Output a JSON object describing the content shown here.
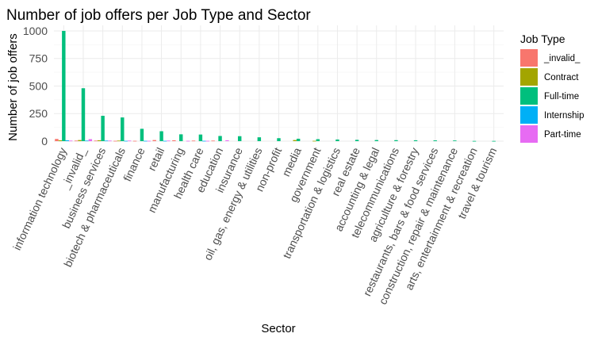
{
  "chart_data": {
    "type": "bar",
    "title": "Number of job offers per Job Type and Sector",
    "xlabel": "Sector",
    "ylabel": "Number of job offers",
    "ylim": [
      0,
      1050
    ],
    "yticks": [
      0,
      250,
      500,
      750,
      1000
    ],
    "grid": true,
    "legend_position": "right",
    "legend_title": "Job Type",
    "categories": [
      "information technology",
      "_invalid_",
      "business services",
      "biotech & pharmaceuticals",
      "finance",
      "retail",
      "manufacturing",
      "health care",
      "education",
      "insurance",
      "oil, gas, energy & utilities",
      "non-profit",
      "media",
      "government",
      "transportation & logistics",
      "real estate",
      "accounting & legal",
      "telecommunications",
      "agriculture & forestry",
      "restaurants, bars & food services",
      "construction, repair & maintenance",
      "arts, entertainment & recreation",
      "travel & tourism"
    ],
    "series": [
      {
        "name": "_invalid_",
        "color": "#F8766D",
        "values": [
          20,
          5,
          5,
          3,
          3,
          10,
          8,
          5,
          5,
          0,
          0,
          0,
          0,
          0,
          0,
          0,
          0,
          0,
          0,
          0,
          0,
          0,
          0
        ]
      },
      {
        "name": "Contract",
        "color": "#A3A500",
        "values": [
          8,
          10,
          8,
          5,
          0,
          0,
          0,
          0,
          0,
          0,
          0,
          0,
          10,
          3,
          0,
          0,
          0,
          0,
          0,
          0,
          0,
          0,
          0
        ]
      },
      {
        "name": "Full-time",
        "color": "#00BF7D",
        "values": [
          1000,
          480,
          230,
          215,
          112,
          90,
          62,
          60,
          47,
          45,
          35,
          27,
          22,
          18,
          15,
          12,
          10,
          9,
          8,
          7,
          6,
          2,
          2
        ]
      },
      {
        "name": "Internship",
        "color": "#00B0F6",
        "values": [
          8,
          5,
          5,
          3,
          3,
          3,
          0,
          3,
          0,
          0,
          0,
          0,
          0,
          0,
          0,
          0,
          0,
          0,
          0,
          0,
          0,
          0,
          0
        ]
      },
      {
        "name": "Part-time",
        "color": "#E76BF3",
        "values": [
          5,
          18,
          5,
          5,
          3,
          5,
          3,
          3,
          8,
          0,
          0,
          0,
          0,
          0,
          0,
          0,
          0,
          0,
          0,
          0,
          0,
          0,
          0
        ]
      }
    ]
  }
}
